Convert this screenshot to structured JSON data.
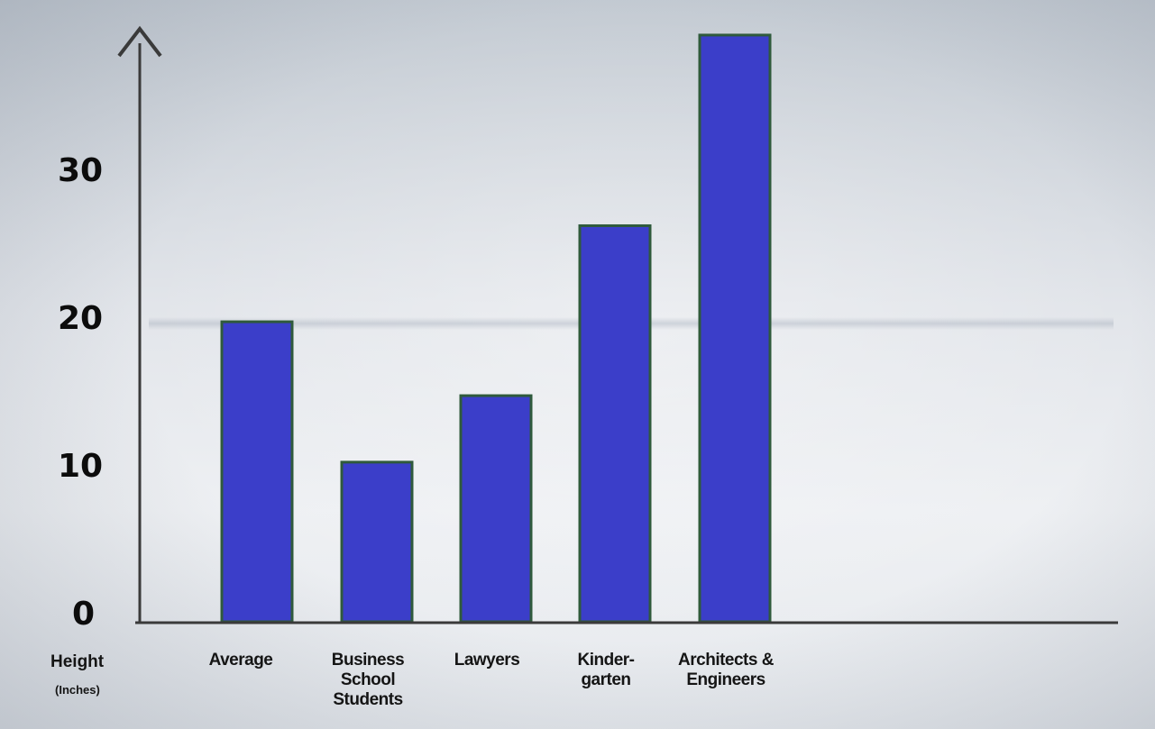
{
  "chart_data": {
    "type": "bar",
    "categories": [
      [
        "Average"
      ],
      [
        "Business",
        "School",
        "Students"
      ],
      [
        "Lawyers"
      ],
      [
        "Kinder-",
        "garten"
      ],
      [
        "Architects &",
        "Engineers"
      ]
    ],
    "values": [
      20.3,
      10.8,
      15.3,
      26.8,
      39.7
    ],
    "ylabel": "Height",
    "ylabel_unit": "(Inches)",
    "yticks": [
      0,
      10,
      20,
      30
    ],
    "ylim": [
      0,
      40
    ],
    "grid": false,
    "legend": "none",
    "colors": {
      "bar_fill": "#3b3ec9",
      "bar_edge": "#2f5a3c",
      "axis": "#3a3a3a",
      "text": "#111111"
    }
  }
}
